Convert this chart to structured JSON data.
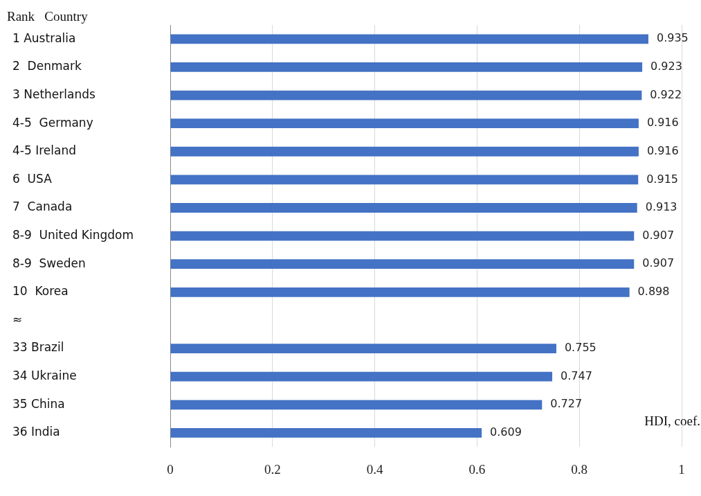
{
  "chart_data": {
    "type": "bar",
    "orientation": "horizontal",
    "ylabel": "Rank   Country",
    "xlabel": "HDI, coef.",
    "categories": [
      "1 Australia",
      "2  Denmark",
      "3 Netherlands",
      "4-5  Germany",
      "4-5 Ireland",
      "6  USA",
      "7  Canada",
      "8-9  United Kingdom",
      "8-9  Sweden",
      "10  Korea",
      "≈",
      "33 Brazil",
      "34 Ukraine",
      "35 China",
      "36 India"
    ],
    "values": [
      0.935,
      0.923,
      0.922,
      0.916,
      0.916,
      0.915,
      0.913,
      0.907,
      0.907,
      0.898,
      null,
      0.755,
      0.747,
      0.727,
      0.609
    ],
    "color": "#4472c4",
    "xlim": [
      0,
      1
    ],
    "xticks": [
      0,
      0.2,
      0.4,
      0.6,
      0.8,
      1
    ],
    "grid": "x",
    "legend": false,
    "data_labels": true
  }
}
